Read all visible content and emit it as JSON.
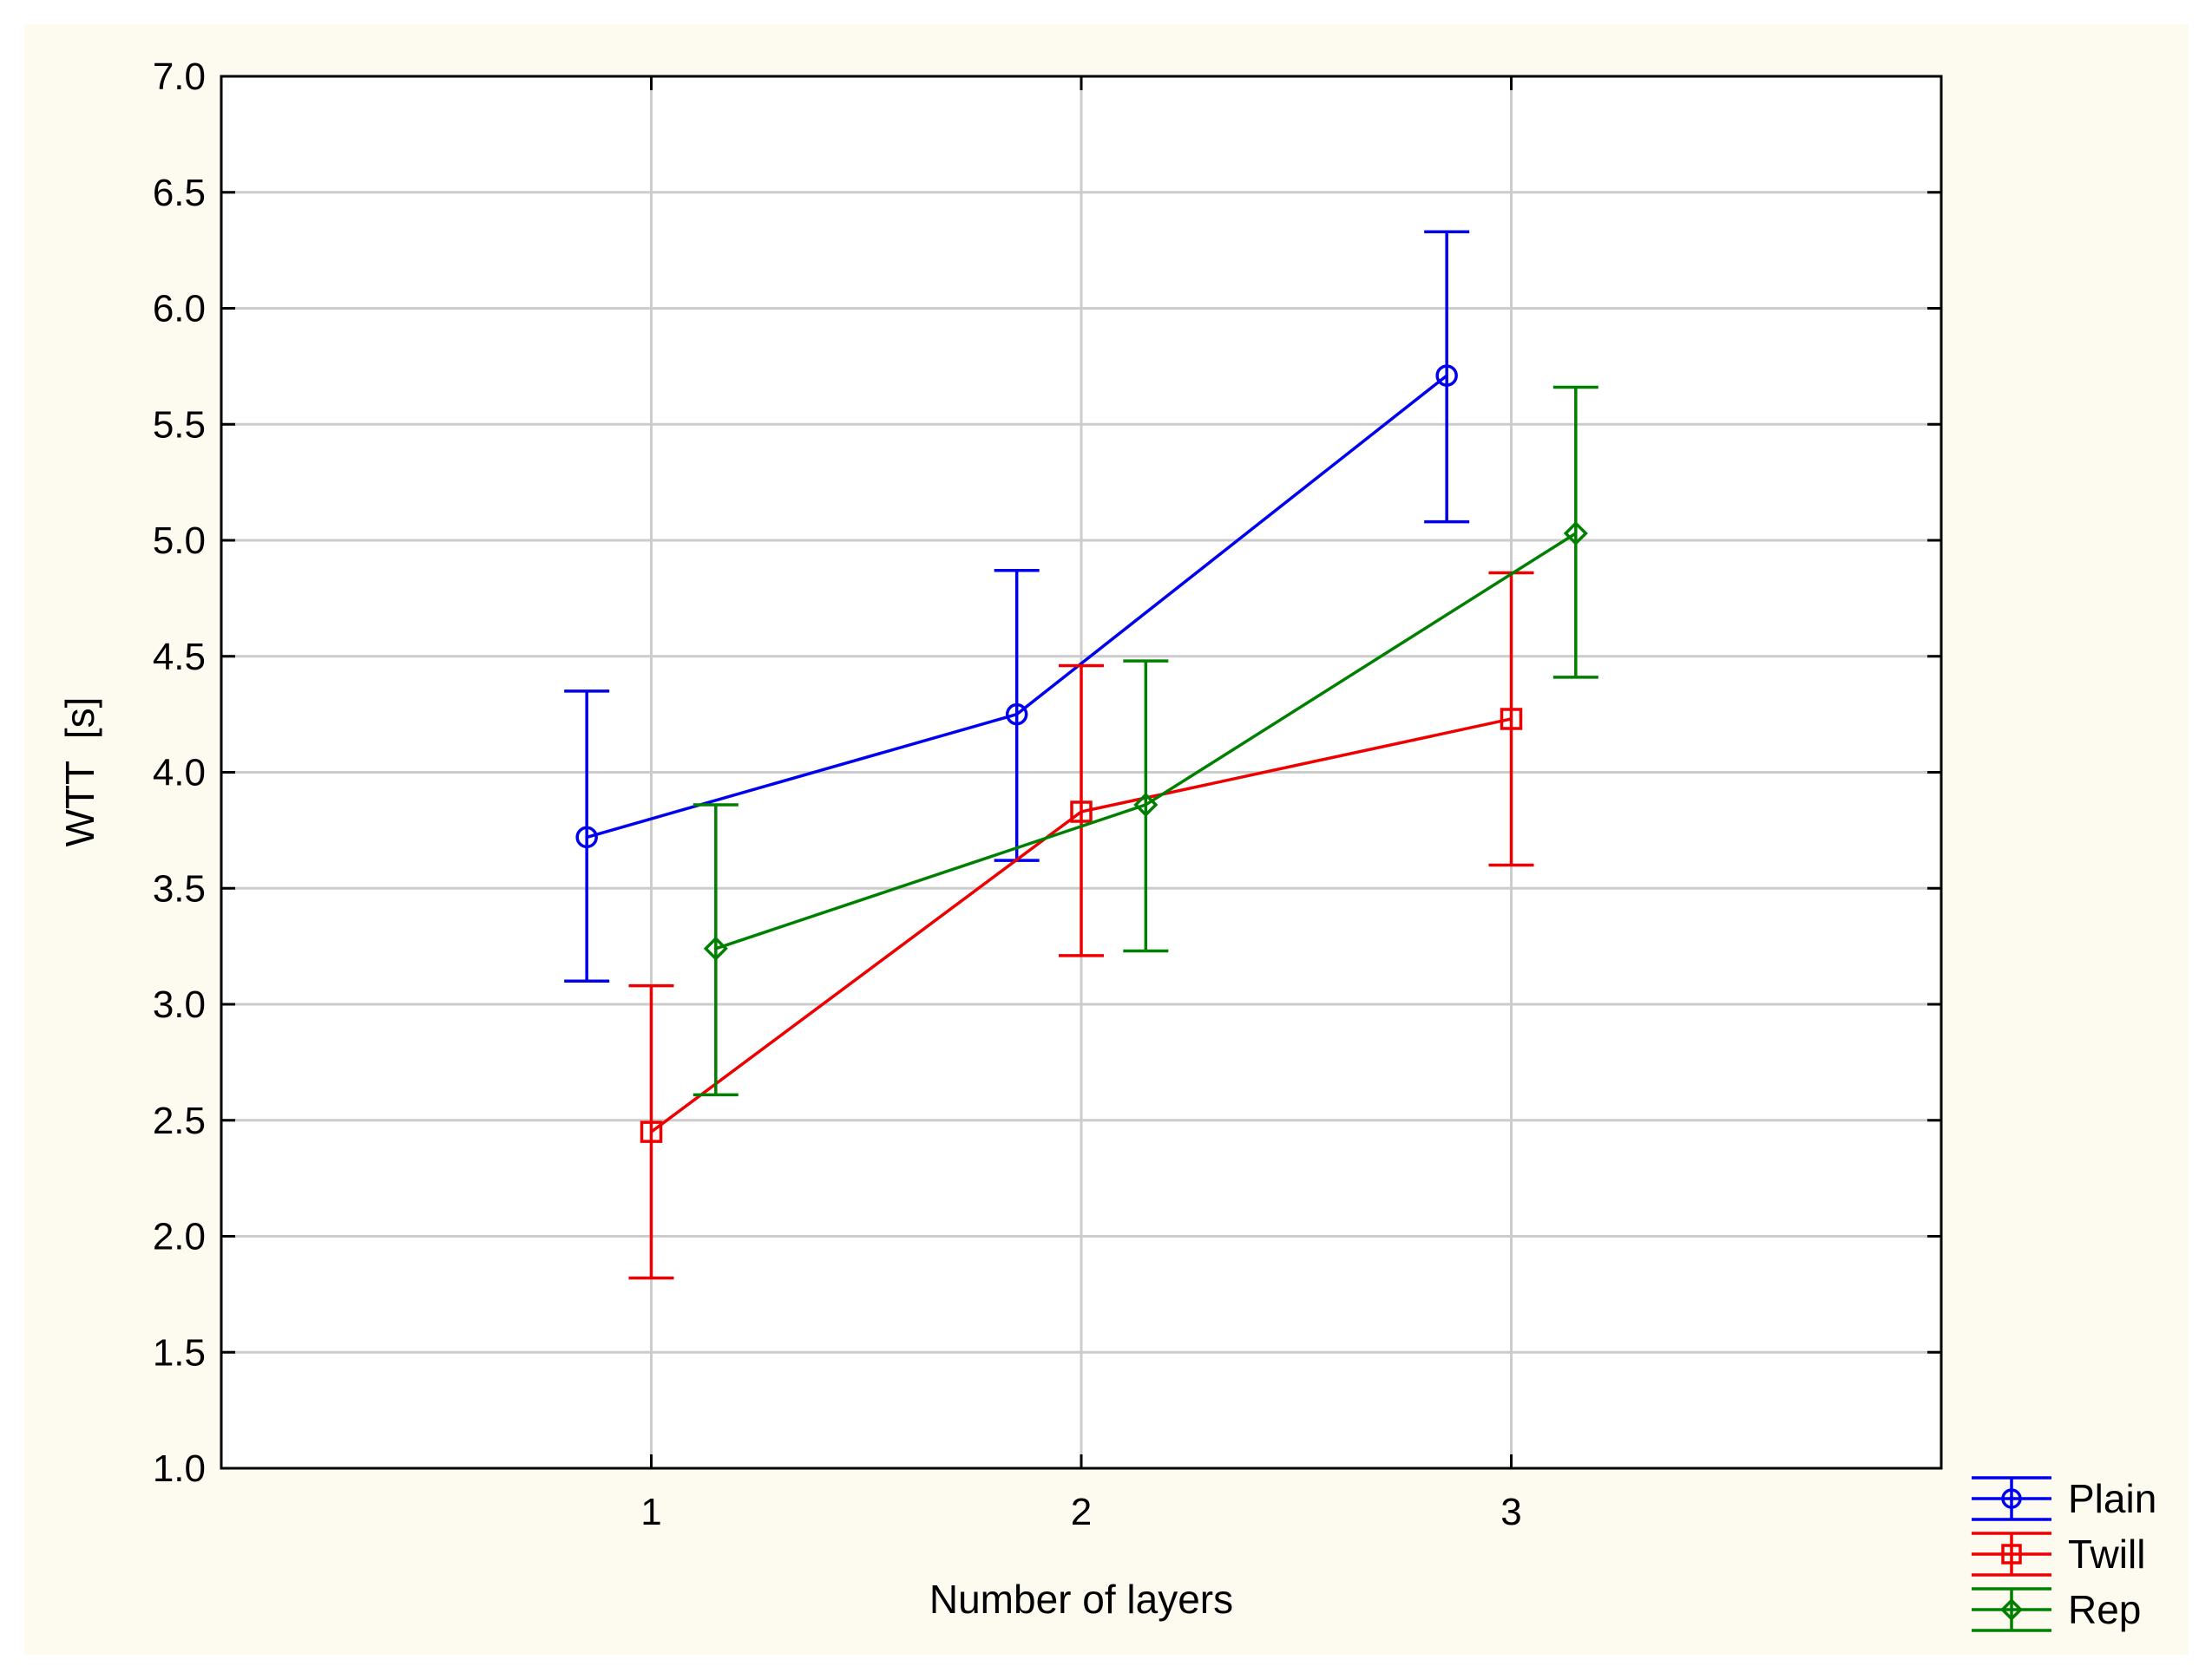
{
  "chart_data": {
    "type": "line",
    "xlabel": "Number of layers",
    "ylabel": "WTT  [s]",
    "categories": [
      "1",
      "2",
      "3"
    ],
    "xlim": [
      0,
      4
    ],
    "ylim": [
      1.0,
      7.0
    ],
    "yticks": [
      "1.0",
      "1.5",
      "2.0",
      "2.5",
      "3.0",
      "3.5",
      "4.0",
      "4.5",
      "5.0",
      "5.5",
      "6.0",
      "6.5",
      "7.0"
    ],
    "grid": true,
    "legend_position": "bottom-right",
    "series": [
      {
        "name": "Plain",
        "color": "#0000ee",
        "marker": "circle",
        "x": [
          0.85,
          1.85,
          2.85
        ],
        "values": [
          3.72,
          4.25,
          5.71
        ],
        "lower": [
          3.1,
          3.62,
          5.08
        ],
        "upper": [
          4.35,
          4.87,
          6.33
        ]
      },
      {
        "name": "Twill",
        "color": "#ee0000",
        "marker": "square",
        "x": [
          1.0,
          2.0,
          3.0
        ],
        "values": [
          2.45,
          3.83,
          4.23
        ],
        "lower": [
          1.82,
          3.21,
          3.6
        ],
        "upper": [
          3.08,
          4.46,
          4.86
        ]
      },
      {
        "name": "Rep",
        "color": "#008000",
        "marker": "diamond",
        "x": [
          1.15,
          2.15,
          3.15
        ],
        "values": [
          3.24,
          3.86,
          5.03
        ],
        "lower": [
          2.61,
          3.23,
          4.41
        ],
        "upper": [
          3.86,
          4.48,
          5.66
        ]
      }
    ]
  }
}
